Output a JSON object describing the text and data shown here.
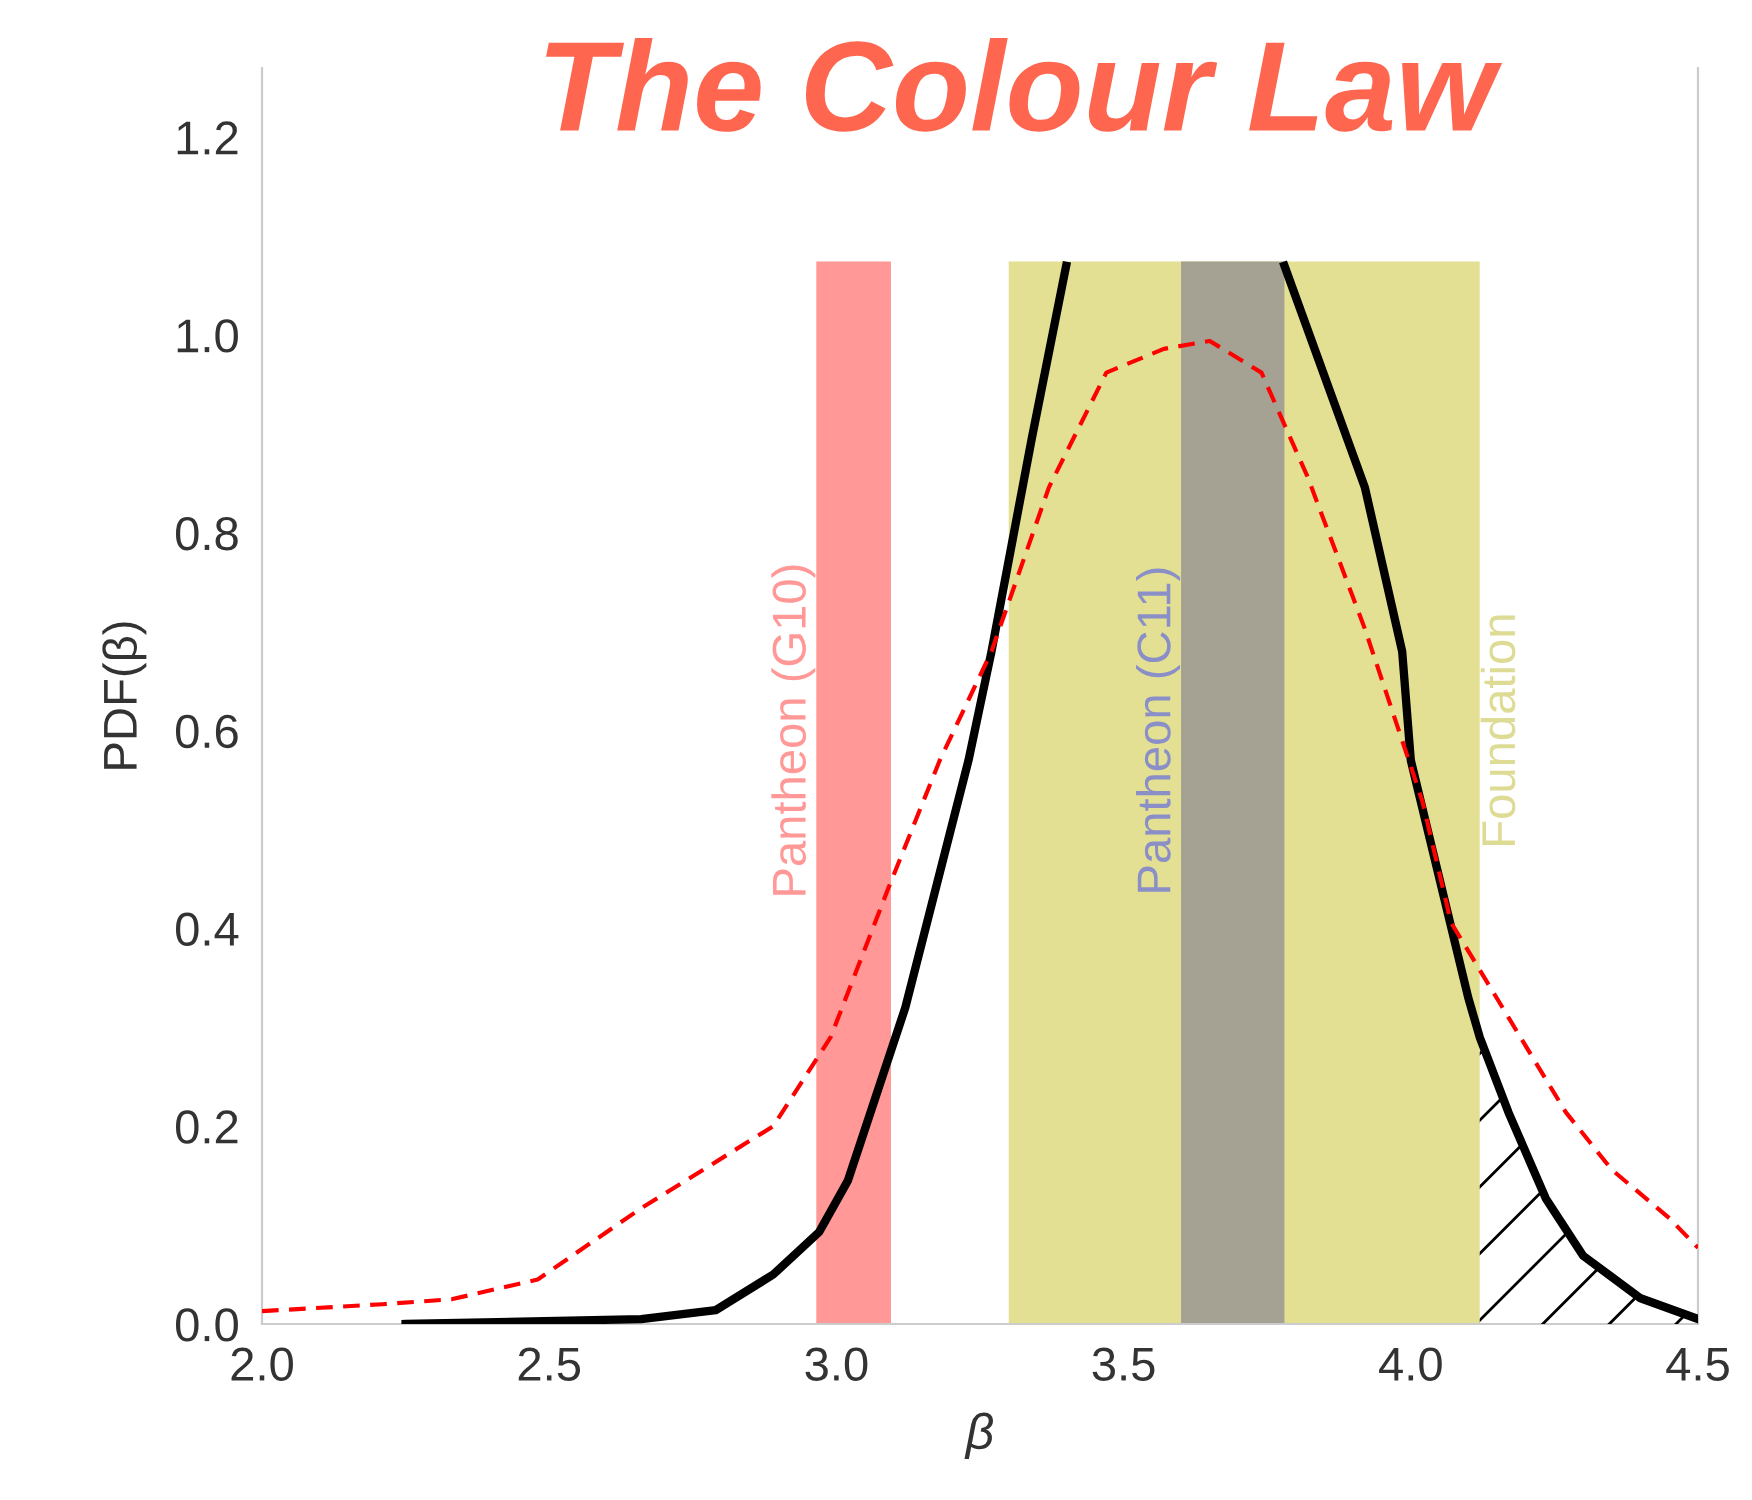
{
  "chart_data": {
    "type": "line",
    "title": "The Colour Law",
    "xlabel": "β",
    "ylabel": "PDF(β)",
    "xlim": [
      2.0,
      4.5
    ],
    "ylim": [
      0,
      1.27
    ],
    "xticks": [
      {
        "value": 2.0,
        "label": "2.0"
      },
      2.5,
      {
        "value": 3.0,
        "label": "3.0"
      },
      3.5,
      {
        "value": 4.0,
        "label": "4.0"
      },
      4.5
    ],
    "yticks": [
      {
        "value": 0,
        "label": "0.0"
      },
      0.2,
      0.4,
      0.6,
      0.8,
      {
        "value": 1.0,
        "label": "1.0"
      },
      1.2
    ],
    "grid": false,
    "legend": false,
    "bands": [
      {
        "axis": "x",
        "from": 2.965,
        "to": 3.095,
        "label": "Pantheon (G10)",
        "color": "#ff9896"
      },
      {
        "axis": "x",
        "from": 3.3,
        "to": 4.12,
        "label": "Foundation",
        "color": "#e3e093"
      },
      {
        "axis": "x",
        "from": 3.6,
        "to": 3.78,
        "label": "Pantheon (C11)",
        "color": "#a6a293"
      }
    ],
    "series": [
      {
        "color": "#000000",
        "line_style": "solid",
        "x": [
          2.25,
          2.66,
          2.79,
          2.89,
          2.97,
          3.02,
          3.12,
          3.23,
          3.27,
          3.34,
          3.4,
          3.41,
          3.77,
          3.78,
          3.92,
          3.985,
          4.0,
          4.1,
          4.12,
          4.17,
          4.235,
          4.3,
          4.4,
          4.5
        ],
        "values": [
          0,
          0.005,
          0.014,
          0.05,
          0.093,
          0.145,
          0.32,
          0.57,
          0.68,
          0.895,
          1.07,
          null,
          null,
          1.07,
          0.846,
          0.68,
          0.57,
          0.33,
          0.29,
          0.214,
          0.127,
          0.069,
          0.026,
          0.005
        ]
      },
      {
        "color": "#ff0000",
        "line_style": "dashed",
        "x": [
          2.0,
          2.21,
          2.33,
          2.48,
          2.66,
          2.89,
          2.99,
          3.09,
          3.18,
          3.27,
          3.37,
          3.47,
          3.57,
          3.65,
          3.74,
          3.82,
          3.92,
          4.02,
          4.07,
          4.17,
          4.27,
          4.35,
          4.45,
          4.5
        ],
        "values": [
          0.013,
          0.02,
          0.025,
          0.045,
          0.117,
          0.2,
          0.29,
          0.44,
          0.57,
          0.68,
          0.846,
          0.962,
          0.986,
          0.994,
          0.962,
          0.857,
          0.703,
          0.529,
          0.406,
          0.31,
          0.214,
          0.156,
          0.107,
          0.077
        ]
      },
      {
        "type": "area",
        "color": "#000000",
        "x": [
          4.12,
          4.17,
          4.235,
          4.3,
          4.4,
          4.5
        ],
        "values": [
          0.29,
          0.214,
          0.127,
          0.069,
          0.026,
          0.005
        ]
      }
    ]
  }
}
